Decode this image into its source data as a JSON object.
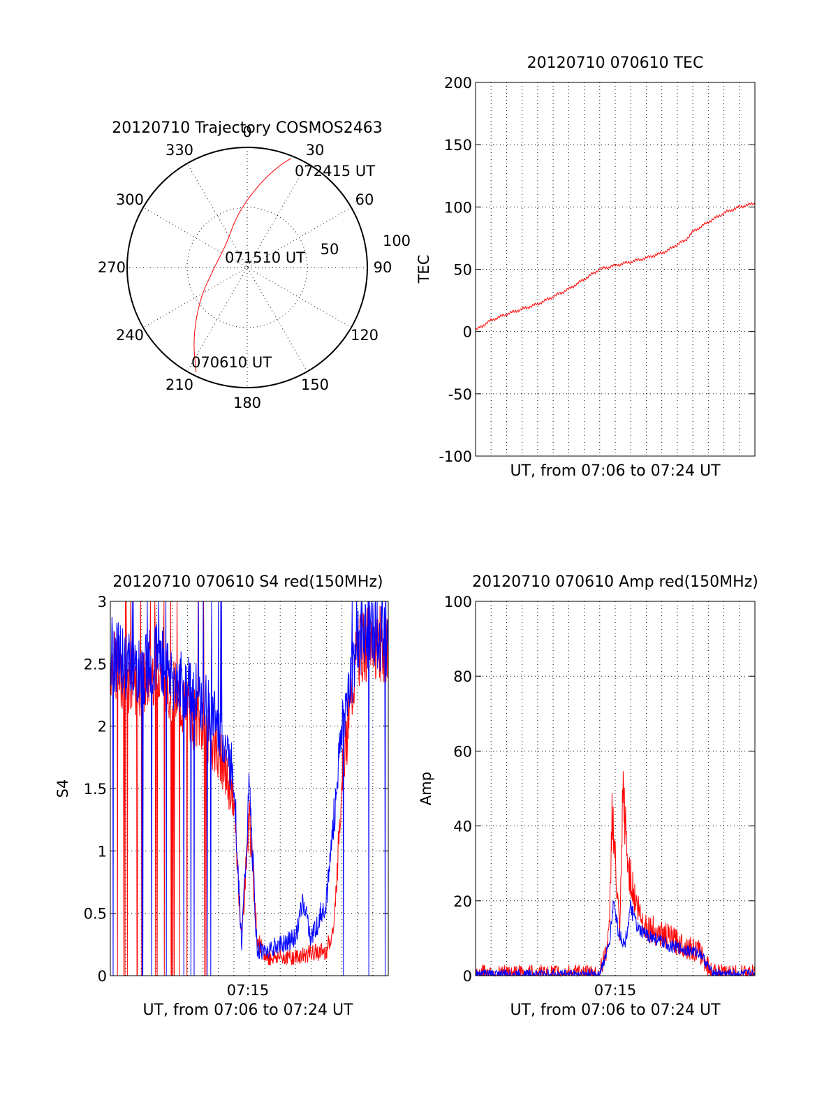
{
  "colors": {
    "red": "#ff0000",
    "blue": "#0000ff",
    "axis": "#000000"
  },
  "chart_data": [
    {
      "type": "polar",
      "title": "20120710 Trajectory COSMOS2463",
      "angle_tick_labels": [
        "0",
        "30",
        "60",
        "90",
        "120",
        "150",
        "180",
        "210",
        "240",
        "270",
        "300",
        "330"
      ],
      "radius_tick_labels": [
        "50",
        "100"
      ],
      "rlim": [
        0,
        100
      ],
      "annotations": [
        "072415 UT",
        "071510 UT",
        "070610 UT"
      ],
      "series": [
        {
          "color": "#ff0000",
          "points": [
            {
              "az": 206,
              "r": 97
            },
            {
              "az": 217,
              "r": 75
            },
            {
              "az": 236,
              "r": 48
            },
            {
              "az": 272,
              "r": 27
            },
            {
              "az": 318,
              "r": 26
            },
            {
              "az": 350,
              "r": 46
            },
            {
              "az": 9,
              "r": 72
            },
            {
              "az": 18,
              "r": 90
            },
            {
              "az": 22,
              "r": 98
            }
          ]
        }
      ]
    },
    {
      "type": "line",
      "title": "20120710 070610 TEC",
      "xlabel": "UT, from 07:06 to 07:24 UT",
      "ylabel": "TEC",
      "ylim": [
        -100,
        200
      ],
      "y_ticks": [
        "200",
        "150",
        "100",
        "50",
        "0",
        "-50",
        "-100"
      ],
      "x_range": [
        "07:06",
        "07:24"
      ],
      "grid": true,
      "series": [
        {
          "color": "#ff0000",
          "x_minutes": [
            0,
            1,
            2,
            3,
            4,
            5,
            6,
            7,
            7.5,
            8,
            9,
            10,
            11,
            12,
            12.5,
            13,
            13.5,
            14,
            15,
            16,
            17,
            18
          ],
          "values": [
            1,
            9,
            14,
            18,
            22,
            28,
            34,
            42,
            46,
            50,
            53,
            56,
            59,
            63,
            66,
            70,
            73,
            80,
            88,
            95,
            100,
            103
          ]
        }
      ]
    },
    {
      "type": "line",
      "title": "20120710 070610 S4 red(150MHz)",
      "xlabel": "UT, from 07:06 to 07:24 UT",
      "ylabel": "S4",
      "ylim": [
        0,
        3
      ],
      "y_ticks": [
        "3",
        "2.5",
        "2",
        "1.5",
        "1",
        "0.5",
        "0"
      ],
      "x_tick_label": "07:15",
      "grid": true,
      "series": [
        {
          "name": "",
          "color": "#ff0000",
          "x_minutes": [
            0,
            1,
            2,
            3,
            4,
            5,
            6,
            7,
            8,
            8.5,
            9,
            9.5,
            10,
            11,
            12,
            13,
            14,
            14.5,
            15,
            16,
            17,
            18
          ],
          "values": [
            2.5,
            2.4,
            2.3,
            2.5,
            2.3,
            2.1,
            2.0,
            1.8,
            1.4,
            0.3,
            1.3,
            0.3,
            0.15,
            0.15,
            0.15,
            0.18,
            0.2,
            0.4,
            1.6,
            2.6,
            2.7,
            2.6
          ]
        },
        {
          "name": "",
          "color": "#0000ff",
          "x_minutes": [
            0,
            1,
            2,
            3,
            4,
            5,
            6,
            7,
            8,
            8.5,
            9,
            9.5,
            10,
            11,
            12,
            12.5,
            13,
            14,
            14.5,
            15,
            16,
            17,
            18
          ],
          "values": [
            2.6,
            2.5,
            2.4,
            2.6,
            2.4,
            2.3,
            2.2,
            2.0,
            1.6,
            0.25,
            1.5,
            0.2,
            0.2,
            0.25,
            0.3,
            0.6,
            0.3,
            0.6,
            1.3,
            2.0,
            2.7,
            2.8,
            2.7
          ]
        }
      ]
    },
    {
      "type": "line",
      "title": "20120710 070610 Amp red(150MHz)",
      "xlabel": "UT, from 07:06 to 07:24 UT",
      "ylabel": "Amp",
      "ylim": [
        0,
        100
      ],
      "y_ticks": [
        "100",
        "80",
        "60",
        "40",
        "20",
        "0"
      ],
      "x_tick_label": "07:15",
      "grid": true,
      "series": [
        {
          "name": "",
          "color": "#ff0000",
          "x_minutes": [
            0,
            8,
            8.6,
            8.8,
            9.0,
            9.3,
            9.5,
            9.8,
            10.3,
            10.8,
            11.5,
            12.5,
            13.5,
            14.5,
            15.2,
            16,
            18
          ],
          "values": [
            0.5,
            0.5,
            10,
            45,
            30,
            10,
            50,
            30,
            20,
            14,
            12,
            10,
            8,
            6,
            1,
            0.5,
            0.5
          ]
        },
        {
          "name": "",
          "color": "#0000ff",
          "x_minutes": [
            0,
            8,
            8.6,
            8.9,
            9.2,
            9.6,
            10.0,
            10.5,
            11.5,
            12.5,
            13.5,
            14.5,
            15.2,
            16,
            18
          ],
          "values": [
            0.5,
            0.5,
            8,
            20,
            12,
            8,
            18,
            12,
            10,
            8,
            7,
            6,
            1,
            0.5,
            0.5
          ]
        }
      ]
    }
  ]
}
